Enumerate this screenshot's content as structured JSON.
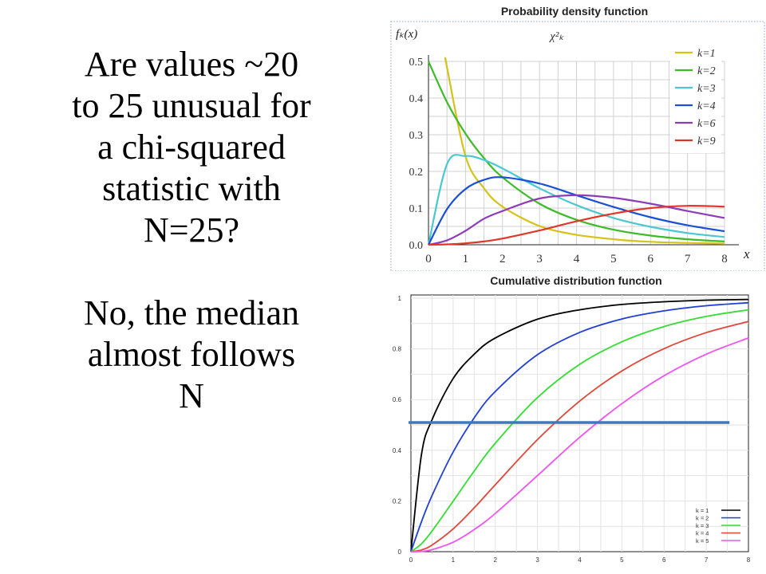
{
  "slide": {
    "question_lines": [
      "Are values ~20",
      "to 25 unusual for",
      "a chi-squared",
      "statistic with",
      "N=25?"
    ],
    "answer_lines": [
      "No, the median",
      "almost follows",
      "N"
    ]
  },
  "chart_data": [
    {
      "type": "line",
      "title": "Probability density function",
      "subtitle": "χ²ₖ",
      "ylabel": "fₖ(x)",
      "xlabel": "x",
      "xlim": [
        0,
        8
      ],
      "ylim": [
        0,
        0.5
      ],
      "xticks": [
        "0",
        "1",
        "2",
        "3",
        "4",
        "5",
        "6",
        "7",
        "8"
      ],
      "yticks": [
        "0.0",
        "0.1",
        "0.2",
        "0.3",
        "0.4",
        "0.5"
      ],
      "grid": true,
      "legend_position": "top-right",
      "x": [
        0,
        0.5,
        1,
        1.5,
        2,
        3,
        4,
        5,
        6,
        7,
        8
      ],
      "series": [
        {
          "name": "k=1",
          "color": "#d6c21a",
          "values": [
            null,
            0.484,
            0.242,
            0.154,
            0.104,
            0.051,
            0.027,
            0.015,
            0.008,
            0.005,
            0.003
          ]
        },
        {
          "name": "k=2",
          "color": "#3dbb28",
          "values": [
            0.5,
            0.389,
            0.303,
            0.236,
            0.184,
            0.112,
            0.068,
            0.041,
            0.025,
            0.015,
            0.009
          ]
        },
        {
          "name": "k=3",
          "color": "#49c8d2",
          "values": [
            0,
            0.22,
            0.242,
            0.231,
            0.208,
            0.154,
            0.108,
            0.073,
            0.049,
            0.032,
            0.021
          ]
        },
        {
          "name": "k=4",
          "color": "#1a4fd6",
          "values": [
            0,
            0.097,
            0.152,
            0.177,
            0.184,
            0.167,
            0.135,
            0.103,
            0.075,
            0.053,
            0.037
          ]
        },
        {
          "name": "k=6",
          "color": "#8e3bb8",
          "values": [
            0,
            0.012,
            0.038,
            0.071,
            0.092,
            0.126,
            0.135,
            0.128,
            0.112,
            0.092,
            0.073
          ]
        },
        {
          "name": "k=9",
          "color": "#e0372a",
          "values": [
            0,
            0.001,
            0.004,
            0.009,
            0.017,
            0.039,
            0.064,
            0.085,
            0.1,
            0.106,
            0.104
          ]
        }
      ]
    },
    {
      "type": "line",
      "title": "Cumulative distribution function",
      "xlim": [
        0,
        8
      ],
      "ylim": [
        0,
        1
      ],
      "xticks": [
        "0",
        "1",
        "2",
        "3",
        "4",
        "5",
        "6",
        "7",
        "8"
      ],
      "yticks": [
        "0",
        "0.2",
        "0.4",
        "0.6",
        "0.8",
        "1"
      ],
      "grid": true,
      "legend_position": "bottom-right",
      "reference_line": {
        "y": 0.5,
        "color": "#3a7bbf"
      },
      "x": [
        0,
        0.25,
        0.5,
        1,
        1.5,
        2,
        3,
        4,
        5,
        6,
        7,
        8
      ],
      "series": [
        {
          "name": "k = 1",
          "color": "#000000",
          "values": [
            0,
            0.383,
            0.52,
            0.683,
            0.779,
            0.843,
            0.917,
            0.954,
            0.975,
            0.986,
            0.992,
            0.995
          ]
        },
        {
          "name": "k = 2",
          "color": "#1f3fd6",
          "values": [
            0,
            0.118,
            0.221,
            0.393,
            0.528,
            0.632,
            0.777,
            0.865,
            0.918,
            0.95,
            0.97,
            0.982
          ]
        },
        {
          "name": "k = 3",
          "color": "#33dd33",
          "values": [
            0,
            0.031,
            0.081,
            0.199,
            0.318,
            0.428,
            0.608,
            0.739,
            0.828,
            0.888,
            0.928,
            0.954
          ]
        },
        {
          "name": "k = 4",
          "color": "#e0473a",
          "values": [
            0,
            0.007,
            0.026,
            0.09,
            0.173,
            0.264,
            0.442,
            0.594,
            0.713,
            0.801,
            0.864,
            0.908
          ]
        },
        {
          "name": "k = 5",
          "color": "#ee55ee",
          "values": [
            0,
            0.001,
            0.008,
            0.037,
            0.087,
            0.151,
            0.3,
            0.451,
            0.584,
            0.694,
            0.779,
            0.843
          ]
        }
      ]
    }
  ]
}
